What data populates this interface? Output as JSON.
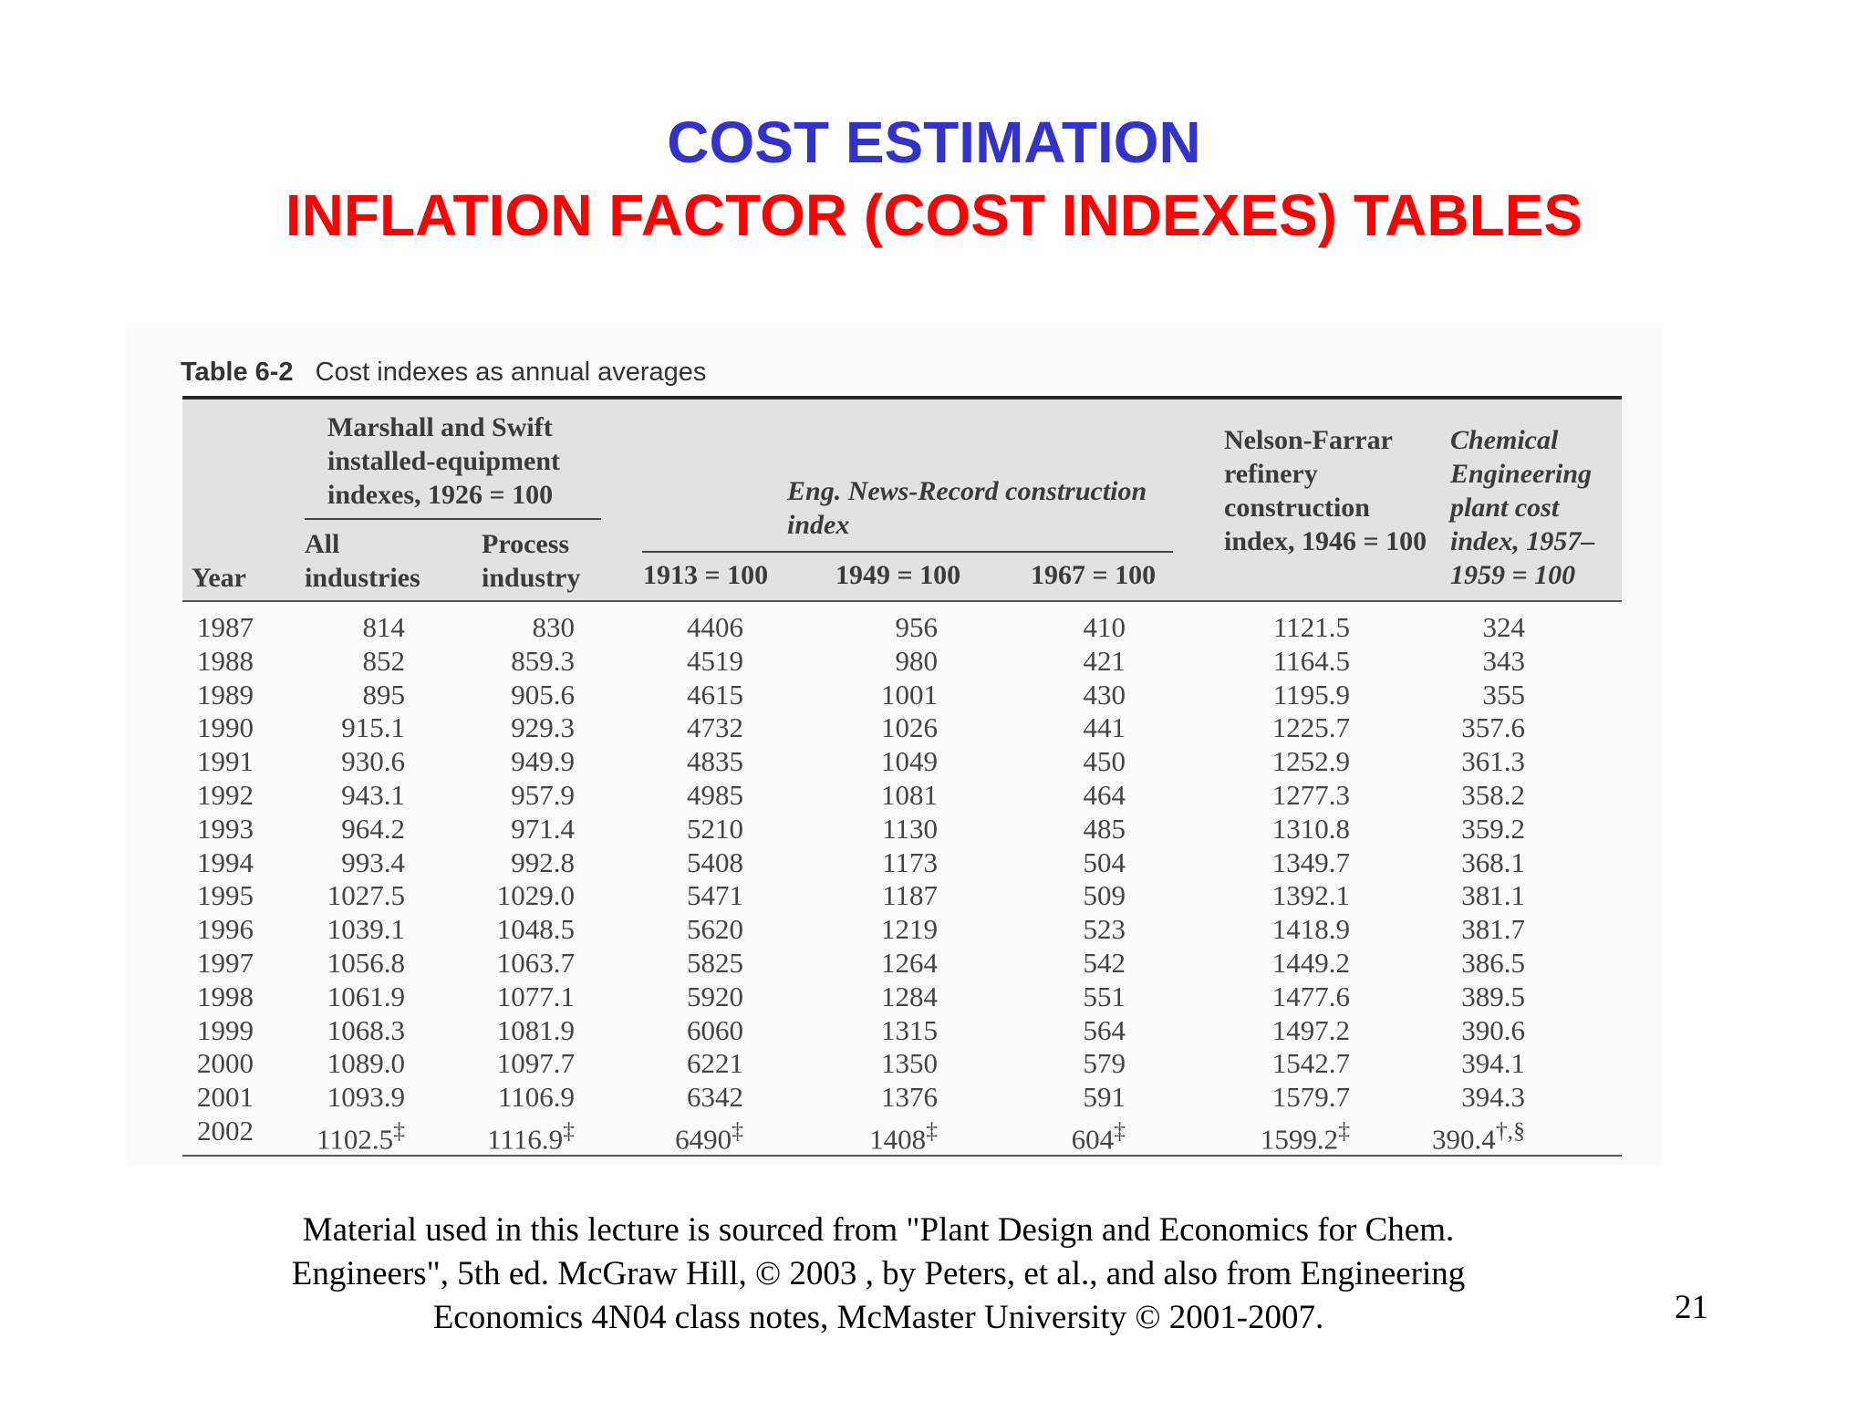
{
  "slide": {
    "title_line1": "COST ESTIMATION",
    "title_line2": "INFLATION FACTOR (COST INDEXES) TABLES",
    "footnote": "Material used in this lecture is sourced from \"Plant Design and Economics for Chem. Engineers\", 5th ed. McGraw Hill, © 2003 , by Peters, et al., and also from Engineering Economics 4N04 class notes, McMaster University © 2001-2007.",
    "page_number": "21"
  },
  "table": {
    "number": "Table 6-2",
    "caption": "Cost indexes as annual averages",
    "group_headers": {
      "marshall_swift": "Marshall and Swift installed-equipment indexes, 1926 = 100",
      "eng_news_record": "Eng. News-Record construction index",
      "nelson_farrar": "Nelson-Farrar refinery construction index, 1946 = 100",
      "chemical_engineering": "Chemical Engineering plant cost index, 1957–1959 = 100"
    },
    "column_headers": {
      "year": "Year",
      "all_industries": "All industries",
      "process_industry": "Process industry",
      "enr_1913": "1913 = 100",
      "enr_1949": "1949 = 100",
      "enr_1967": "1967 = 100"
    },
    "rows": [
      {
        "year": "1987",
        "all": "814",
        "process": "830",
        "enr1913": "4406",
        "enr1949": "956",
        "enr1967": "410",
        "nf": "1121.5",
        "ce": "324"
      },
      {
        "year": "1988",
        "all": "852",
        "process": "859.3",
        "enr1913": "4519",
        "enr1949": "980",
        "enr1967": "421",
        "nf": "1164.5",
        "ce": "343"
      },
      {
        "year": "1989",
        "all": "895",
        "process": "905.6",
        "enr1913": "4615",
        "enr1949": "1001",
        "enr1967": "430",
        "nf": "1195.9",
        "ce": "355"
      },
      {
        "year": "1990",
        "all": "915.1",
        "process": "929.3",
        "enr1913": "4732",
        "enr1949": "1026",
        "enr1967": "441",
        "nf": "1225.7",
        "ce": "357.6"
      },
      {
        "year": "1991",
        "all": "930.6",
        "process": "949.9",
        "enr1913": "4835",
        "enr1949": "1049",
        "enr1967": "450",
        "nf": "1252.9",
        "ce": "361.3"
      },
      {
        "year": "1992",
        "all": "943.1",
        "process": "957.9",
        "enr1913": "4985",
        "enr1949": "1081",
        "enr1967": "464",
        "nf": "1277.3",
        "ce": "358.2"
      },
      {
        "year": "1993",
        "all": "964.2",
        "process": "971.4",
        "enr1913": "5210",
        "enr1949": "1130",
        "enr1967": "485",
        "nf": "1310.8",
        "ce": "359.2"
      },
      {
        "year": "1994",
        "all": "993.4",
        "process": "992.8",
        "enr1913": "5408",
        "enr1949": "1173",
        "enr1967": "504",
        "nf": "1349.7",
        "ce": "368.1"
      },
      {
        "year": "1995",
        "all": "1027.5",
        "process": "1029.0",
        "enr1913": "5471",
        "enr1949": "1187",
        "enr1967": "509",
        "nf": "1392.1",
        "ce": "381.1"
      },
      {
        "year": "1996",
        "all": "1039.1",
        "process": "1048.5",
        "enr1913": "5620",
        "enr1949": "1219",
        "enr1967": "523",
        "nf": "1418.9",
        "ce": "381.7"
      },
      {
        "year": "1997",
        "all": "1056.8",
        "process": "1063.7",
        "enr1913": "5825",
        "enr1949": "1264",
        "enr1967": "542",
        "nf": "1449.2",
        "ce": "386.5"
      },
      {
        "year": "1998",
        "all": "1061.9",
        "process": "1077.1",
        "enr1913": "5920",
        "enr1949": "1284",
        "enr1967": "551",
        "nf": "1477.6",
        "ce": "389.5"
      },
      {
        "year": "1999",
        "all": "1068.3",
        "process": "1081.9",
        "enr1913": "6060",
        "enr1949": "1315",
        "enr1967": "564",
        "nf": "1497.2",
        "ce": "390.6"
      },
      {
        "year": "2000",
        "all": "1089.0",
        "process": "1097.7",
        "enr1913": "6221",
        "enr1949": "1350",
        "enr1967": "579",
        "nf": "1542.7",
        "ce": "394.1"
      },
      {
        "year": "2001",
        "all": "1093.9",
        "process": "1106.9",
        "enr1913": "6342",
        "enr1949": "1376",
        "enr1967": "591",
        "nf": "1579.7",
        "ce": "394.3"
      },
      {
        "year": "2002",
        "all": "1102.5",
        "process": "1116.9",
        "enr1913": "6490",
        "enr1949": "1408",
        "enr1967": "604",
        "nf": "1599.2",
        "ce": "390.4"
      }
    ],
    "footnote_marks": {
      "dagger_dbl": "‡",
      "ce_2002": "†,§"
    }
  }
}
